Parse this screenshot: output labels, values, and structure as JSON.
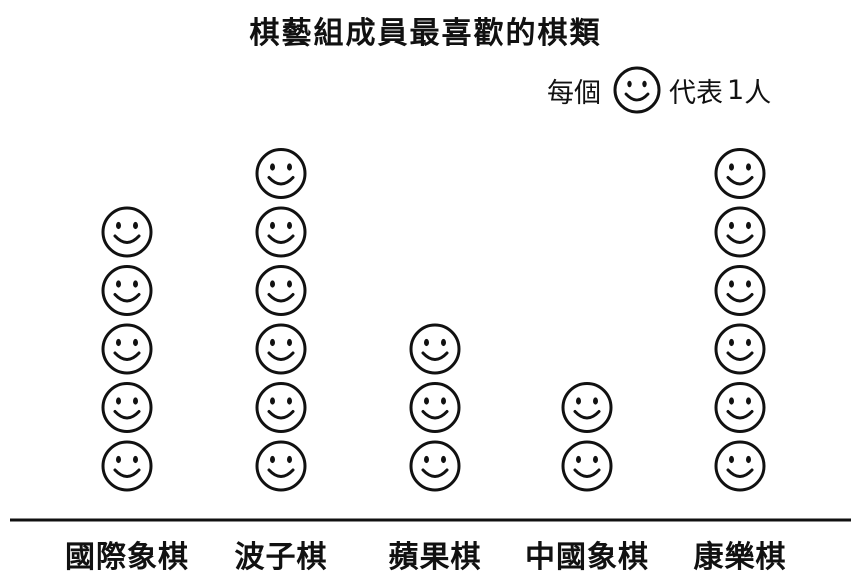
{
  "chart_data": {
    "type": "pictograph",
    "title": "棋藝組成員最喜歡的棋類",
    "categories": [
      "國際象棋",
      "波子棋",
      "蘋果棋",
      "中國象棋",
      "康樂棋"
    ],
    "values": [
      5,
      6,
      3,
      2,
      6
    ],
    "symbol": "smiley-face-icon",
    "legend": {
      "prefix": "每個",
      "suffix": "代表",
      "value": "1",
      "unit": "人"
    },
    "xlabel": "",
    "ylabel": ""
  },
  "colors": {
    "ink": "#111111",
    "background": "#ffffff"
  }
}
